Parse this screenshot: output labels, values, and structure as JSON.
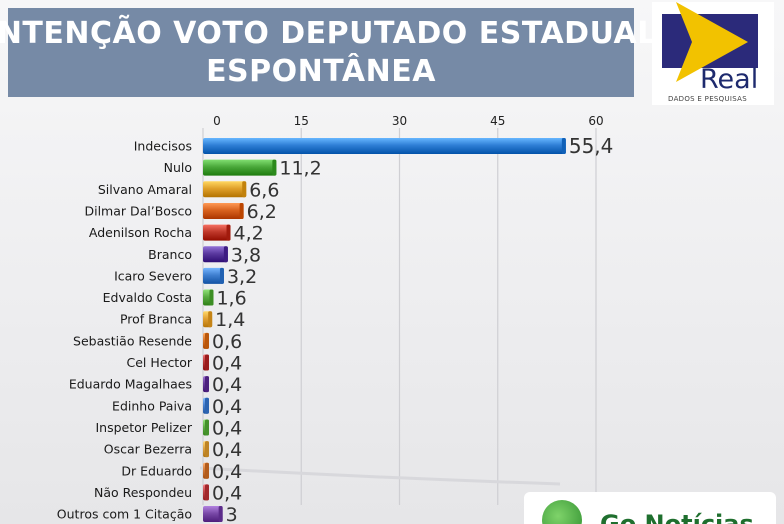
{
  "header": {
    "title_line1": "INTENÇÃO VOTO DEPUTADO ESTADUAL",
    "title_line2": "ESPONTÂNEA"
  },
  "logo": {
    "word": "Real",
    "sub": "DADOS E PESQUISAS",
    "colors": {
      "navy": "#2b2a7a",
      "yellow": "#f2c200"
    }
  },
  "badge": {
    "text": "Go Notícias"
  },
  "chart_data": {
    "type": "bar",
    "orientation": "horizontal",
    "title": "INTENÇÃO VOTO DEPUTADO ESTADUAL ESPONTÂNEA",
    "xlim": [
      0,
      60
    ],
    "ticks": [
      0,
      15,
      30,
      45,
      60
    ],
    "grid": true,
    "categories": [
      "Indecisos",
      "Nulo",
      "Silvano Amaral",
      "Dilmar Dal’Bosco",
      "Adenilson Rocha",
      "Branco",
      "Icaro Severo",
      "Edvaldo Costa",
      "Prof Branca",
      "Sebastião Resende",
      "Cel Hector",
      "Eduardo Magalhaes",
      "Edinho Paiva",
      "Inspetor Pelizer",
      "Oscar Bezerra",
      "Dr Eduardo",
      "Não Respondeu",
      "Outros com 1 Citação"
    ],
    "values": [
      55.4,
      11.2,
      6.6,
      6.2,
      4.2,
      3.8,
      3.2,
      1.6,
      1.4,
      0.6,
      0.4,
      0.4,
      0.4,
      0.4,
      0.4,
      0.4,
      0.4,
      3
    ],
    "value_labels": [
      "55,4",
      "11,2",
      "6,6",
      "6,2",
      "4,2",
      "3,8",
      "3,2",
      "1,6",
      "1,4",
      "0,6",
      "0,4",
      "0,4",
      "0,4",
      "0,4",
      "0,4",
      "0,4",
      "0,4",
      "3"
    ],
    "colors": [
      "#2f7fd6",
      "#4aa83a",
      "#e0a02a",
      "#d9631f",
      "#c0392b",
      "#5b3aa0",
      "#3f7fd0",
      "#5aac42",
      "#e3a235",
      "#d8752a",
      "#b83a3a",
      "#6a3f9c",
      "#4a82cf",
      "#62b049",
      "#dca243",
      "#d17a3a",
      "#c0464a",
      "#7a4aa8"
    ]
  }
}
